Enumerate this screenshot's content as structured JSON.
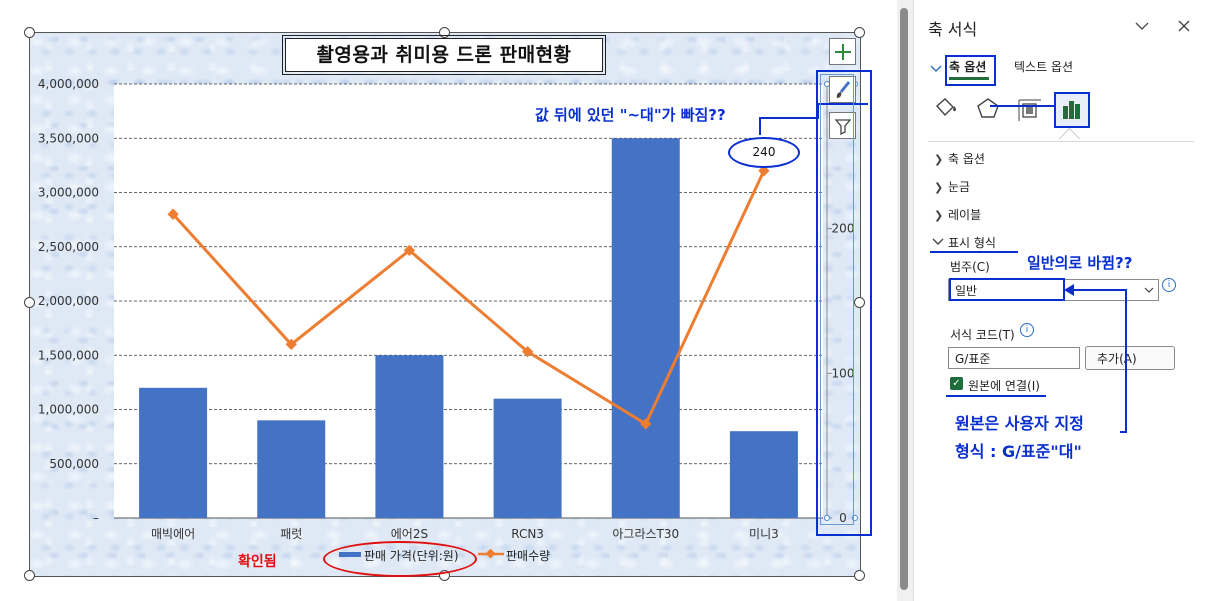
{
  "pane": {
    "title": "축 서식",
    "tab_axis_options": "축 옵션",
    "tab_text_options": "텍스트 옵션",
    "sections": [
      "축 옵션",
      "눈금",
      "레이블"
    ],
    "display_format_heading": "표시 형식",
    "category_label": "범주(C)",
    "category_value": "일반",
    "format_code_label": "서식 코드(T)",
    "format_code_value": "G/표준",
    "add_button": "추가(A)",
    "link_checkbox_label": "원본에 연결(I)",
    "link_checked": true
  },
  "annotations": {
    "value_suffix_missing": "값 뒤에 있던 \"~대\"가 빠짐??",
    "changed_to_general": "일반의로 바뀜??",
    "confirmed": "확인됨",
    "original_format_line1": "원본은 사용자 지정",
    "original_format_line2": "형식 : G/표준\"대\"",
    "callout_value": "240"
  },
  "chart_data": {
    "type": "bar",
    "title": "촬영용과 취미용 드론 판매현황",
    "categories": [
      "매빅에어",
      "패럿",
      "에어2S",
      "RCN3",
      "아그라스T30",
      "미니3"
    ],
    "series": [
      {
        "name": "판매 가격(단위:원)",
        "type": "bar",
        "axis": "primary",
        "color": "#4472c4",
        "values": [
          1200000,
          900000,
          1500000,
          1100000,
          3500000,
          800000
        ]
      },
      {
        "name": "판매수량",
        "type": "line",
        "axis": "secondary",
        "color": "#ed7d31",
        "values": [
          210,
          120,
          185,
          115,
          65,
          240
        ]
      }
    ],
    "primary_axis": {
      "min": 0,
      "max": 4000000,
      "ticks": [
        "–",
        "500,000",
        "1,000,000",
        "1,500,000",
        "2,000,000",
        "2,500,000",
        "3,000,000",
        "3,500,000",
        "4,000,000"
      ]
    },
    "secondary_axis": {
      "min": 0,
      "max": 300,
      "ticks": [
        "0",
        "100",
        "200"
      ]
    },
    "grid": true,
    "legend_position": "bottom"
  }
}
